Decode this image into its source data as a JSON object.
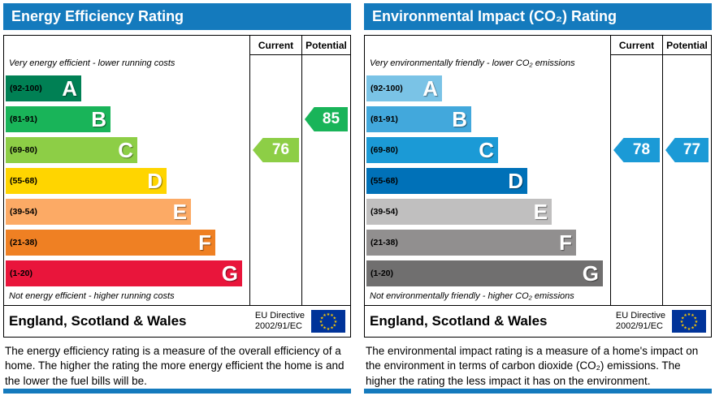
{
  "theme": {
    "header_color": "#147abd",
    "border_color": "#000000",
    "eu_flag_blue": "#003399",
    "eu_flag_star": "#ffcc00"
  },
  "panels": [
    {
      "title": "Energy Efficiency Rating",
      "columns": {
        "current": "Current",
        "potential": "Potential"
      },
      "note_top": "Very energy efficient - lower running costs",
      "note_bottom": "Not energy efficient - higher running costs",
      "bands": [
        {
          "letter": "A",
          "range": "(92-100)",
          "color": "#008054"
        },
        {
          "letter": "B",
          "range": "(81-91)",
          "color": "#19b459"
        },
        {
          "letter": "C",
          "range": "(69-80)",
          "color": "#8dce46"
        },
        {
          "letter": "D",
          "range": "(55-68)",
          "color": "#ffd500"
        },
        {
          "letter": "E",
          "range": "(39-54)",
          "color": "#fcaa65"
        },
        {
          "letter": "F",
          "range": "(21-38)",
          "color": "#ef8023"
        },
        {
          "letter": "G",
          "range": "(1-20)",
          "color": "#e9153b"
        }
      ],
      "current": {
        "value": "76",
        "band_index": 2,
        "color": "#8dce46"
      },
      "potential": {
        "value": "85",
        "band_index": 1,
        "color": "#19b459"
      },
      "footer": {
        "region": "England, Scotland & Wales",
        "directive": "EU Directive\n2002/91/EC"
      },
      "description": "The energy efficiency rating is a measure of the overall efficiency of a home. The higher the rating the more energy efficient the home is and the lower the fuel bills will be."
    },
    {
      "title": "Environmental Impact (CO₂) Rating",
      "columns": {
        "current": "Current",
        "potential": "Potential"
      },
      "note_top": "Very environmentally friendly - lower CO₂ emissions",
      "note_bottom": "Not environmentally friendly - higher CO₂ emissions",
      "bands": [
        {
          "letter": "A",
          "range": "(92-100)",
          "color": "#7ac3e6"
        },
        {
          "letter": "B",
          "range": "(81-91)",
          "color": "#42a8dc"
        },
        {
          "letter": "C",
          "range": "(69-80)",
          "color": "#1b9ad6"
        },
        {
          "letter": "D",
          "range": "(55-68)",
          "color": "#0071b8"
        },
        {
          "letter": "E",
          "range": "(39-54)",
          "color": "#c0bfbf"
        },
        {
          "letter": "F",
          "range": "(21-38)",
          "color": "#918f8f"
        },
        {
          "letter": "G",
          "range": "(1-20)",
          "color": "#706f6f"
        }
      ],
      "current": {
        "value": "78",
        "band_index": 2,
        "color": "#1b9ad6"
      },
      "potential": {
        "value": "77",
        "band_index": 2,
        "color": "#1b9ad6"
      },
      "footer": {
        "region": "England, Scotland & Wales",
        "directive": "EU Directive\n2002/91/EC"
      },
      "description": "The environmental impact rating is a measure of a home's impact on the environment in terms of carbon dioxide (CO₂) emissions. The higher the rating the less impact it has on the environment."
    }
  ],
  "chart_data": [
    {
      "type": "bar",
      "orientation": "horizontal",
      "title": "Energy Efficiency Rating",
      "categories": [
        "A",
        "B",
        "C",
        "D",
        "E",
        "F",
        "G"
      ],
      "band_ranges": [
        "92-100",
        "81-91",
        "69-80",
        "55-68",
        "39-54",
        "21-38",
        "1-20"
      ],
      "series": [
        {
          "name": "Current",
          "value": 76,
          "band": "C"
        },
        {
          "name": "Potential",
          "value": 85,
          "band": "B"
        }
      ],
      "scale": [
        1,
        100
      ],
      "legend_position": "none"
    },
    {
      "type": "bar",
      "orientation": "horizontal",
      "title": "Environmental Impact (CO₂) Rating",
      "categories": [
        "A",
        "B",
        "C",
        "D",
        "E",
        "F",
        "G"
      ],
      "band_ranges": [
        "92-100",
        "81-91",
        "69-80",
        "55-68",
        "39-54",
        "21-38",
        "1-20"
      ],
      "series": [
        {
          "name": "Current",
          "value": 78,
          "band": "C"
        },
        {
          "name": "Potential",
          "value": 77,
          "band": "C"
        }
      ],
      "scale": [
        1,
        100
      ],
      "legend_position": "none"
    }
  ]
}
